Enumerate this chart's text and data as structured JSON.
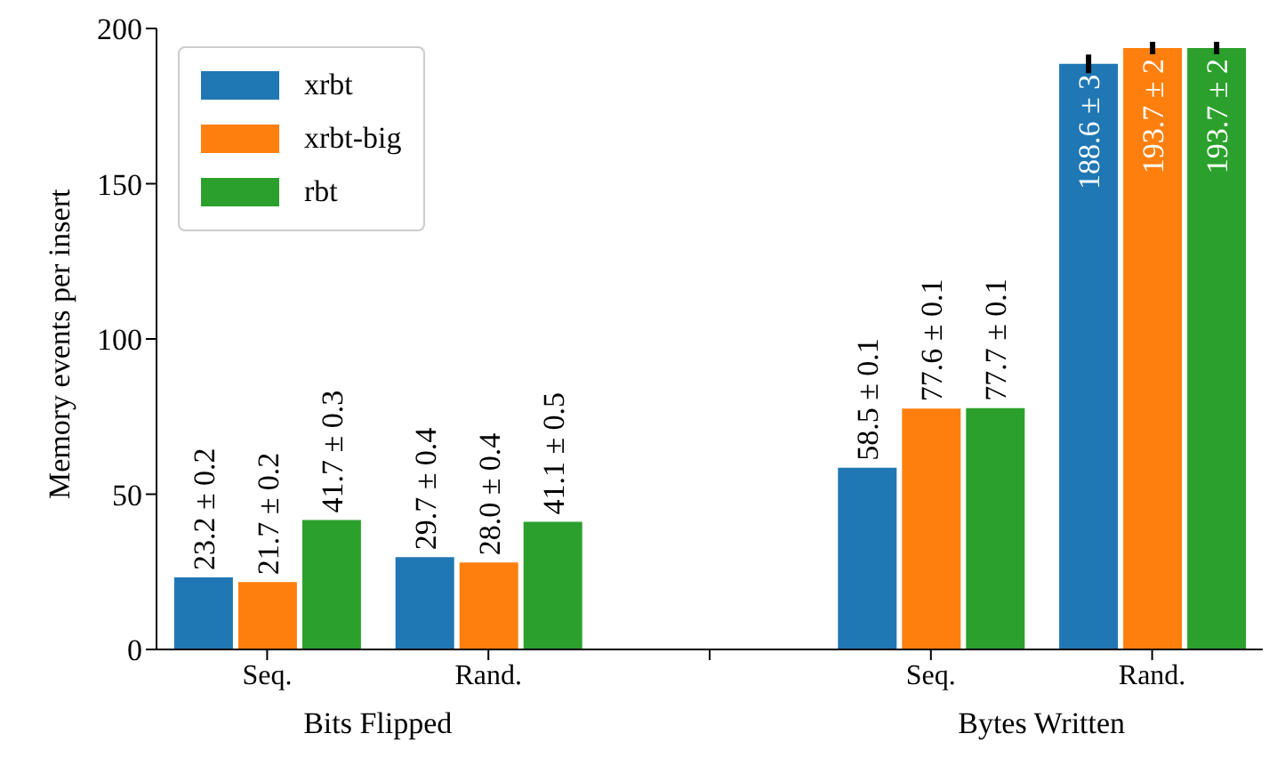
{
  "chart_data": {
    "type": "bar",
    "ylabel": "Memory events per insert",
    "categories": [
      "Seq.",
      "Rand.",
      null,
      "Seq.",
      "Rand."
    ],
    "annotations": [
      "Bits Flipped",
      "Bytes Written"
    ],
    "series": [
      {
        "name": "xrbt",
        "color": "#1f77b4",
        "values": [
          23.2,
          29.7,
          null,
          58.5,
          188.6
        ],
        "errors": [
          null,
          null,
          null,
          null,
          3
        ],
        "value_labels": [
          "23.2 ± 0.2",
          "29.7 ± 0.4",
          null,
          "58.5 ± 0.1",
          "188.6 ± 3"
        ]
      },
      {
        "name": "xrbt-big",
        "color": "#ff7f0e",
        "values": [
          21.7,
          28.0,
          null,
          77.6,
          193.7
        ],
        "errors": [
          null,
          null,
          null,
          null,
          2
        ],
        "value_labels": [
          "21.7 ± 0.2",
          "28.0 ± 0.4",
          null,
          "77.6 ± 0.1",
          "193.7 ± 2"
        ]
      },
      {
        "name": "rbt",
        "color": "#2ca02c",
        "values": [
          41.7,
          41.1,
          null,
          77.7,
          193.7
        ],
        "errors": [
          null,
          null,
          null,
          null,
          2
        ],
        "value_labels": [
          "41.7 ± 0.3",
          "41.1 ± 0.5",
          null,
          "77.7 ± 0.1",
          "193.7 ± 2"
        ]
      }
    ],
    "ylim": [
      0,
      200
    ],
    "yticks": [
      0,
      50,
      100,
      150,
      200
    ],
    "grid": false,
    "legend": "top left"
  }
}
